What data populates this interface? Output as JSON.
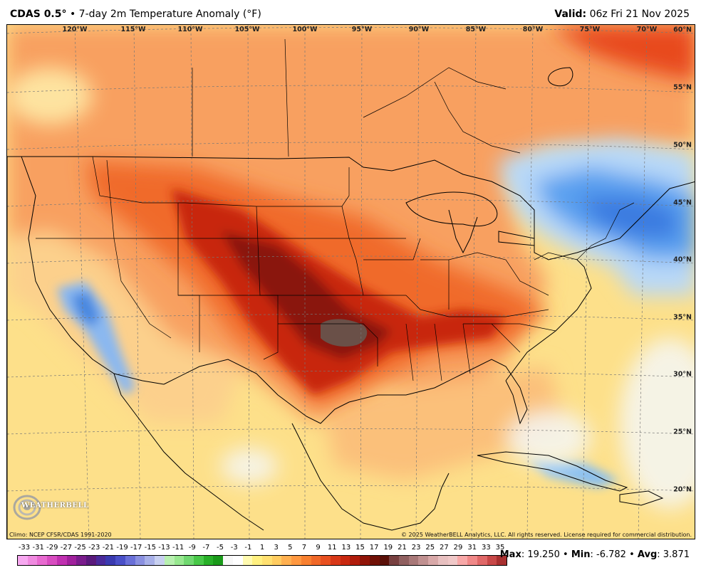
{
  "header": {
    "model": "CDAS 0.5°",
    "separator": " • ",
    "product": "7-day 2m Temperature Anomaly (°F)",
    "valid_label": "Valid:",
    "valid_time": "06z Fri 21 Nov 2025"
  },
  "map": {
    "longitude_labels": [
      "120°W",
      "115°W",
      "110°W",
      "105°W",
      "100°W",
      "95°W",
      "90°W",
      "85°W",
      "80°W",
      "75°W",
      "70°W"
    ],
    "latitude_labels": [
      "60°N",
      "55°N",
      "50°N",
      "45°N",
      "40°N",
      "35°N",
      "30°N",
      "25°N",
      "20°N"
    ],
    "climo_text": "Climo: NCEP CFSR/CDAS 1991-2020",
    "copyright_text": "© 2025 WeatherBELL Analytics, LLC. All rights reserved. License required for commercial distribution.",
    "logo_text": "WEATHERBELL"
  },
  "legend": {
    "ticks": [
      "-33",
      "-31",
      "-29",
      "-27",
      "-25",
      "-23",
      "-21",
      "-19",
      "-17",
      "-15",
      "-13",
      "-11",
      "-9",
      "-7",
      "-5",
      "-3",
      "-1",
      "1",
      "3",
      "5",
      "7",
      "9",
      "11",
      "13",
      "15",
      "17",
      "19",
      "21",
      "23",
      "25",
      "27",
      "29",
      "31",
      "33",
      "35"
    ],
    "colors": [
      "#f7a8f0",
      "#f08ae0",
      "#e86ad0",
      "#d84cc0",
      "#c030b0",
      "#a0209c",
      "#7a1c8c",
      "#5a1a7c",
      "#4a2a9a",
      "#3a3ab0",
      "#4a50c8",
      "#6a70d8",
      "#8a90e0",
      "#a8b0e8",
      "#c8d0f0",
      "#b8f0b0",
      "#98e890",
      "#70d870",
      "#48c848",
      "#28b028",
      "#1a9a1a",
      "#f8f8f8",
      "#ffffff",
      "#fffab0",
      "#fff080",
      "#ffe070",
      "#ffcc60",
      "#ffb050",
      "#ff9840",
      "#f88030",
      "#f06828",
      "#e85020",
      "#d83818",
      "#c82810",
      "#b01c0c",
      "#901408",
      "#701006",
      "#5a1008",
      "#784040",
      "#906060",
      "#a87878",
      "#c09090",
      "#d8a8a8",
      "#e8c0c0",
      "#f0c8c8",
      "#f8a8a8",
      "#f08888",
      "#e06868",
      "#c84848",
      "#a83030"
    ],
    "max_label": "Max",
    "max_value": "19.250",
    "min_label": "Min",
    "min_value": "-6.782",
    "avg_label": "Avg",
    "avg_value": "3.871",
    "bullet": "•"
  }
}
